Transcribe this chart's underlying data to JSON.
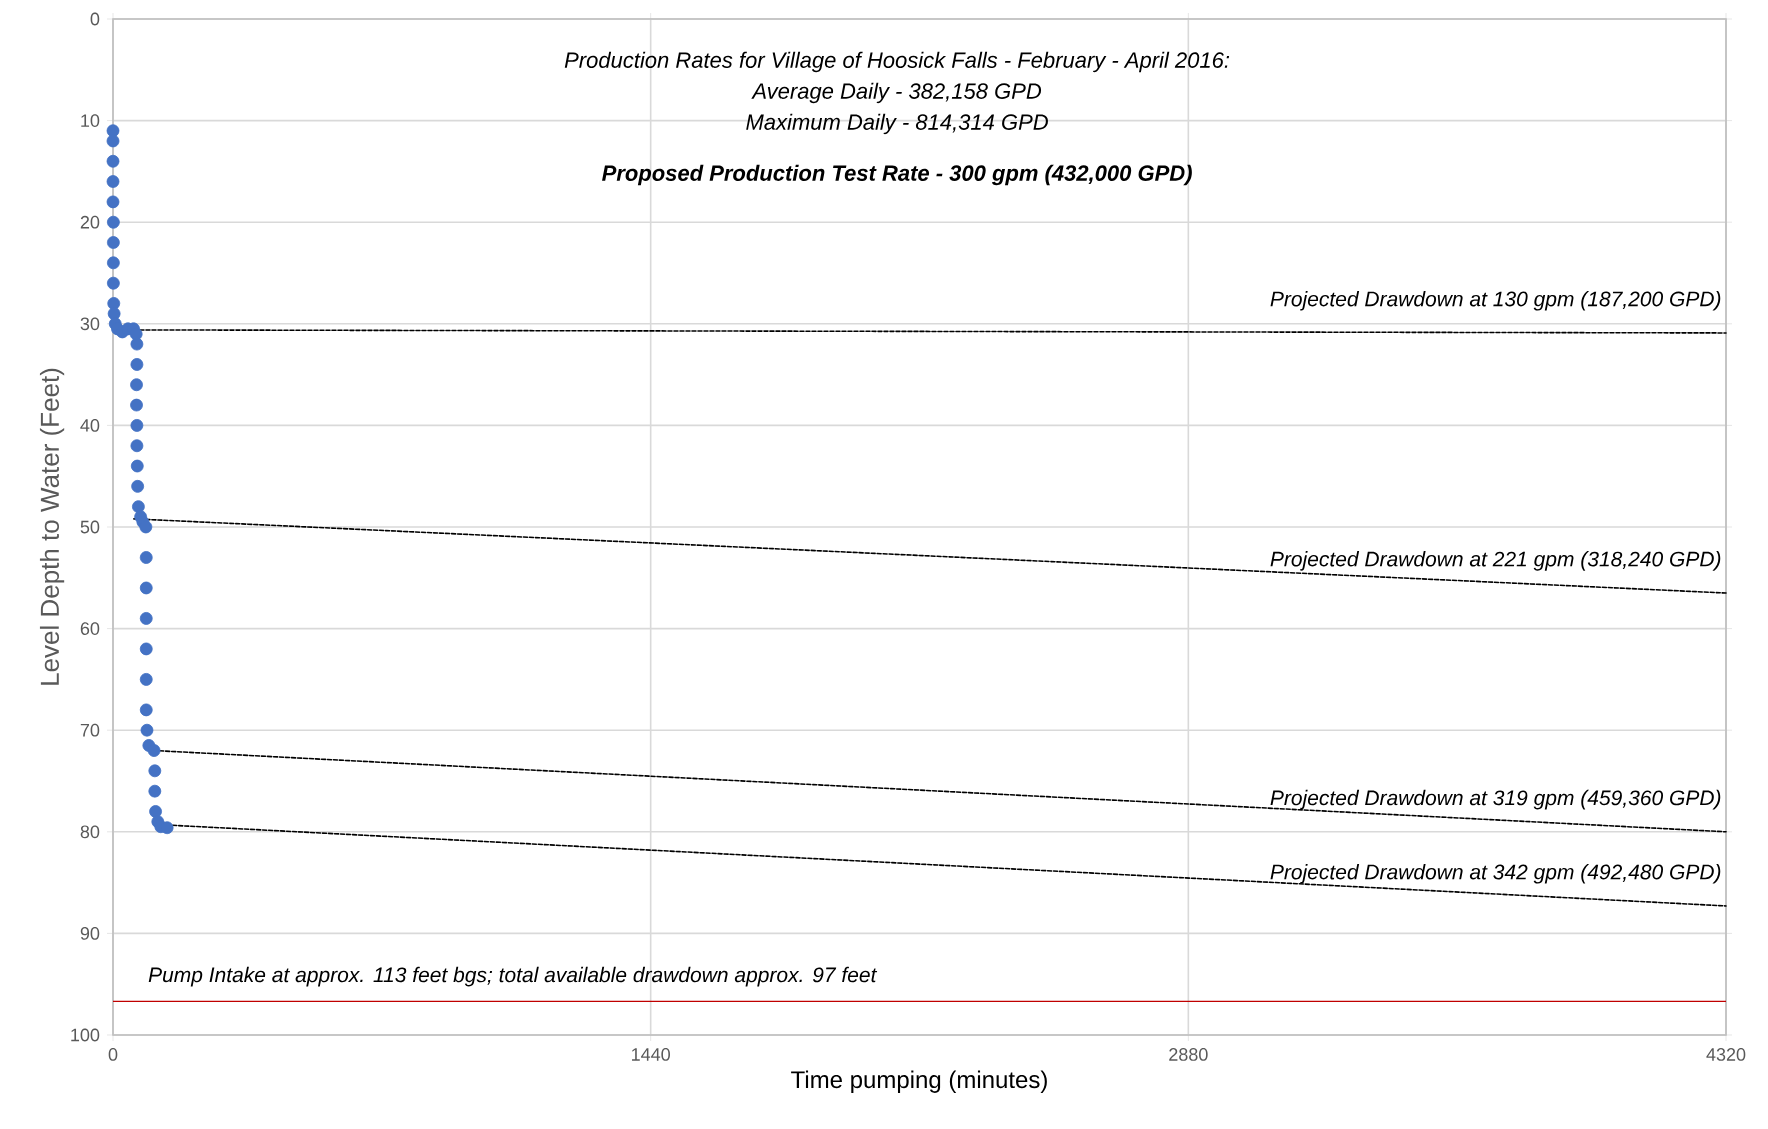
{
  "chart_data": {
    "type": "scatter",
    "xlabel": "Time pumping (minutes)",
    "ylabel": "Level Depth to Water (Feet)",
    "annotations": [
      "Production Rates for Village of Hoosick Falls - February - April 2016:",
      "Average Daily - 382,158 GPD",
      "Maximum Daily - 814,314 GPD",
      "**Proposed Production Test Rate - 300 gpm (432,000 GPD)**"
    ],
    "xlim": [
      0,
      4320
    ],
    "xticks": [
      0,
      1440,
      2880,
      4320
    ],
    "ylim": [
      100,
      0
    ],
    "yticks": [
      0,
      10,
      20,
      30,
      40,
      50,
      60,
      70,
      80,
      90,
      100
    ],
    "grid": true,
    "marker": "circle",
    "series": [
      {
        "color": "#4472c4",
        "x": [
          0,
          0,
          0,
          0,
          0,
          1,
          1,
          1,
          1,
          2,
          3,
          6,
          12,
          25,
          40,
          55,
          62,
          64,
          64,
          63,
          63,
          64,
          64,
          65,
          66,
          68,
          74,
          80,
          88,
          89,
          89,
          89,
          89,
          89,
          89,
          91,
          96,
          110,
          112,
          112,
          114,
          120,
          128,
          145
        ],
        "values": [
          11,
          12,
          14,
          16,
          18,
          20,
          22,
          24,
          26,
          28,
          29,
          30,
          30.5,
          30.8,
          30.5,
          30.5,
          31,
          32,
          34,
          36,
          38,
          40,
          42,
          44,
          46,
          48,
          49,
          49.5,
          50,
          53,
          56,
          59,
          62,
          65,
          68,
          70,
          71.5,
          72,
          74,
          76,
          78,
          79,
          79.5,
          79.6
        ]
      },
      {
        "name": "Projected Drawdown at 130 gpm (187,200 GPD)",
        "type": "line",
        "line_style": "dashed",
        "marker": "none",
        "color": "#000000",
        "x": [
          24,
          4320
        ],
        "values": [
          30.6,
          30.9
        ]
      },
      {
        "name": "Projected Drawdown at 221 gpm (318,240 GPD)",
        "type": "line",
        "line_style": "dashed",
        "marker": "none",
        "color": "#000000",
        "x": [
          56,
          4320
        ],
        "values": [
          49.2,
          56.5
        ]
      },
      {
        "name": "Projected Drawdown at 319 gpm (459,360 GPD)",
        "type": "line",
        "line_style": "dashed",
        "marker": "none",
        "color": "#000000",
        "x": [
          109,
          4320
        ],
        "values": [
          72.0,
          80.0
        ]
      },
      {
        "name": "Projected Drawdown at 342 gpm (492,480 GPD)",
        "type": "line",
        "line_style": "dashed",
        "marker": "none",
        "color": "#000000",
        "x": [
          128,
          4320
        ],
        "values": [
          79.3,
          87.3
        ]
      }
    ],
    "ref_lines": [
      {
        "axis": "y",
        "value": 96.7,
        "label": "Pump Intake at approx. 113 feet bgs; total available drawdown approx. 97 feet",
        "color": "#c00000"
      }
    ]
  }
}
